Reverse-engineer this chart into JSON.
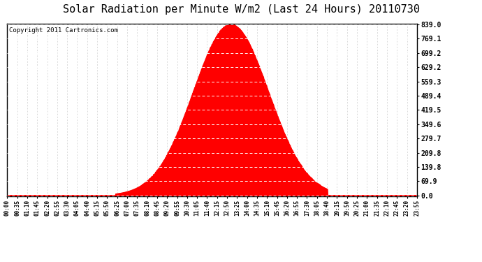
{
  "title": "Solar Radiation per Minute W/m2 (Last 24 Hours) 20110730",
  "copyright": "Copyright 2011 Cartronics.com",
  "y_ticks": [
    0.0,
    69.9,
    139.8,
    209.8,
    279.7,
    349.6,
    419.5,
    489.4,
    559.3,
    629.2,
    699.2,
    769.1,
    839.0
  ],
  "y_max": 839.0,
  "y_min": 0.0,
  "fill_color": "#ff0000",
  "line_color": "#ff0000",
  "background_color": "#ffffff",
  "title_fontsize": 11,
  "copyright_fontsize": 6.5,
  "x_labels": [
    "00:00",
    "00:35",
    "01:10",
    "01:45",
    "02:20",
    "02:55",
    "03:30",
    "04:05",
    "04:40",
    "05:15",
    "05:50",
    "06:25",
    "07:00",
    "07:35",
    "08:10",
    "08:45",
    "09:20",
    "09:55",
    "10:30",
    "11:05",
    "11:40",
    "12:15",
    "12:50",
    "13:25",
    "14:00",
    "14:35",
    "15:10",
    "15:45",
    "16:20",
    "16:55",
    "17:30",
    "18:05",
    "18:40",
    "19:15",
    "19:50",
    "20:25",
    "21:00",
    "21:35",
    "22:10",
    "22:45",
    "23:20",
    "23:55"
  ],
  "peak_hour": 13.1,
  "peak_value": 839.0,
  "rise_hour": 6.35,
  "set_hour": 18.75,
  "sigma": 2.2
}
